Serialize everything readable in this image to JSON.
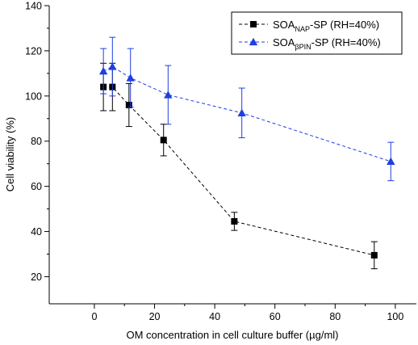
{
  "chart_data": {
    "type": "scatter",
    "xlabel": "OM concentration in cell culture buffer (µg/ml)",
    "ylabel": "Cell viability (%)",
    "xlim": [
      -15,
      107
    ],
    "ylim": [
      8,
      140
    ],
    "x_ticks": [
      0,
      20,
      40,
      60,
      80,
      100
    ],
    "y_ticks": [
      20,
      40,
      60,
      80,
      100,
      120,
      140
    ],
    "grid": false,
    "legend_position": "top-right",
    "series": [
      {
        "label_main": "SOA",
        "label_sub": "NAP",
        "label_rest": "-SP (RH=40%)",
        "marker": "square",
        "color": "#000000",
        "line_style": "dashed",
        "points": [
          {
            "x": 3,
            "y": 104,
            "err": 10.5
          },
          {
            "x": 6,
            "y": 104,
            "err": 10.5
          },
          {
            "x": 11.5,
            "y": 96,
            "err": 9.5
          },
          {
            "x": 23,
            "y": 80.5,
            "err": 7
          },
          {
            "x": 46.5,
            "y": 44.5,
            "err": 4
          },
          {
            "x": 93,
            "y": 29.5,
            "err": 6
          }
        ]
      },
      {
        "label_main": "SOA",
        "label_sub": "βPIN",
        "label_rest": "-SP (RH=40%)",
        "marker": "triangle",
        "color": "#1f3fe0",
        "line_style": "dashed",
        "points": [
          {
            "x": 3,
            "y": 111,
            "err": 10
          },
          {
            "x": 6,
            "y": 113,
            "err": 13
          },
          {
            "x": 12,
            "y": 108,
            "err": 13
          },
          {
            "x": 24.5,
            "y": 100.5,
            "err": 13
          },
          {
            "x": 49,
            "y": 92.5,
            "err": 11
          },
          {
            "x": 98.5,
            "y": 71,
            "err": 8.5
          }
        ]
      }
    ]
  }
}
